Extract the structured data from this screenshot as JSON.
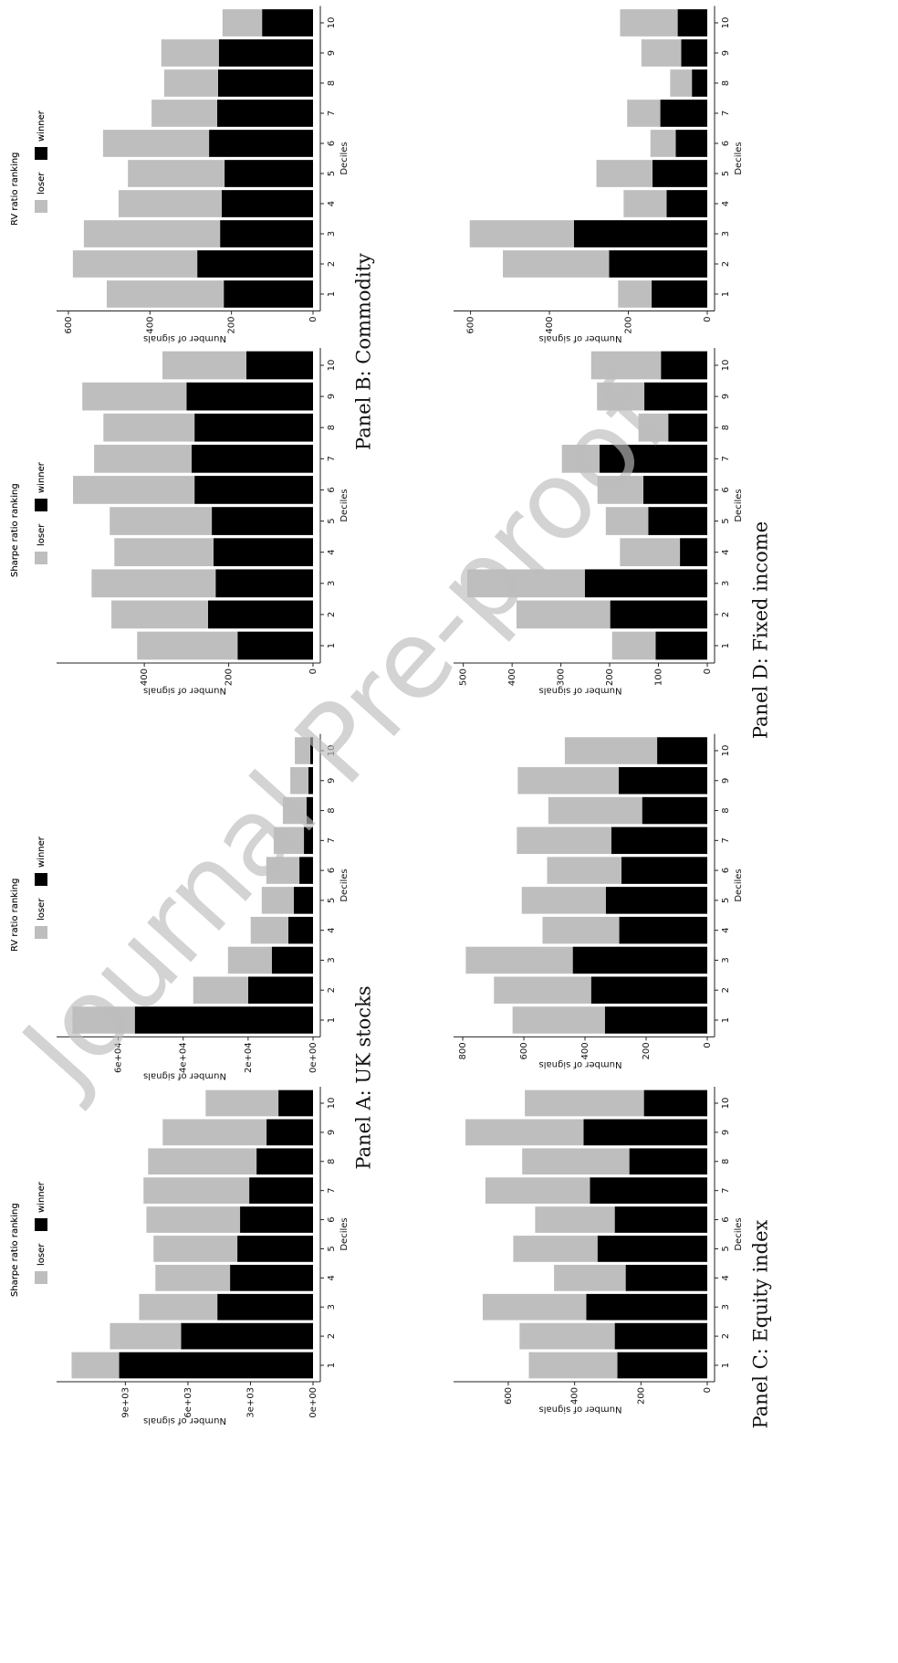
{
  "chart_data": [
    {
      "type": "bar",
      "orientation": "horizontal",
      "stacked": true,
      "legend": "top",
      "title": "Sharpe ratio ranking",
      "x_label": "Deciles",
      "y_label": "Number of signals",
      "categories": [
        "1",
        "2",
        "3",
        "4",
        "5",
        "6",
        "7",
        "8",
        "9",
        "10"
      ],
      "series": [
        {
          "name": "loser",
          "color": "#bebebe",
          "values": [
            2280,
            3410,
            3750,
            3580,
            4020,
            4490,
            5070,
            5200,
            4980,
            3490
          ]
        },
        {
          "name": "winner",
          "color": "#000000",
          "values": [
            9300,
            6330,
            4590,
            3980,
            3630,
            3500,
            3060,
            2710,
            2230,
            1660
          ]
        }
      ],
      "ylim": [
        0,
        12300
      ],
      "yticks": [
        {
          "value": 0,
          "label": "0e+00"
        },
        {
          "value": 3000,
          "label": "3e+03"
        },
        {
          "value": 6000,
          "label": "6e+03"
        },
        {
          "value": 9000,
          "label": "9e+03"
        }
      ]
    },
    {
      "type": "bar",
      "orientation": "horizontal",
      "stacked": true,
      "legend": "top",
      "title": "RV ratio ranking",
      "x_label": "Deciles",
      "y_label": "Number of signals",
      "categories": [
        "1",
        "2",
        "3",
        "4",
        "5",
        "6",
        "7",
        "8",
        "9",
        "10"
      ],
      "series": [
        {
          "name": "loser",
          "color": "#bebebe",
          "values": [
            19200,
            16900,
            13500,
            11600,
            9900,
            10200,
            9300,
            7300,
            5600,
            4750
          ]
        },
        {
          "name": "winner",
          "color": "#000000",
          "values": [
            54900,
            20000,
            12700,
            7600,
            5900,
            4200,
            2800,
            2000,
            1400,
            850
          ]
        }
      ],
      "ylim": [
        0,
        79000
      ],
      "yticks": [
        {
          "value": 0,
          "label": "0e+00"
        },
        {
          "value": 20000,
          "label": "2e+04"
        },
        {
          "value": 40000,
          "label": "4e+04"
        },
        {
          "value": 60000,
          "label": "6e+04"
        }
      ]
    },
    {
      "type": "bar",
      "orientation": "horizontal",
      "stacked": true,
      "legend": "top",
      "title": "Sharpe ratio ranking",
      "x_label": "Deciles",
      "y_label": "Number of signals",
      "categories": [
        "1",
        "2",
        "3",
        "4",
        "5",
        "6",
        "7",
        "8",
        "9",
        "10"
      ],
      "series": [
        {
          "name": "loser",
          "color": "#bebebe",
          "values": [
            238,
            229,
            294,
            235,
            242,
            288,
            231,
            216,
            247,
            199
          ]
        },
        {
          "name": "winner",
          "color": "#000000",
          "values": [
            179,
            249,
            231,
            236,
            240,
            281,
            288,
            281,
            300,
            158
          ]
        }
      ],
      "ylim": [
        0,
        608
      ],
      "yticks": [
        0,
        200,
        400
      ]
    },
    {
      "type": "bar",
      "orientation": "horizontal",
      "stacked": true,
      "legend": "top",
      "title": "RV ratio ranking",
      "x_label": "Deciles",
      "y_label": "Number of signals",
      "categories": [
        "1",
        "2",
        "3",
        "4",
        "5",
        "6",
        "7",
        "8",
        "9",
        "10"
      ],
      "series": [
        {
          "name": "loser",
          "color": "#bebebe",
          "values": [
            287,
            305,
            334,
            253,
            237,
            260,
            161,
            132,
            141,
            97
          ]
        },
        {
          "name": "winner",
          "color": "#000000",
          "values": [
            219,
            284,
            228,
            224,
            217,
            255,
            235,
            233,
            231,
            125
          ]
        }
      ],
      "ylim": [
        0,
        629
      ],
      "yticks": [
        0,
        200,
        400,
        600
      ]
    },
    {
      "type": "bar",
      "orientation": "horizontal",
      "stacked": true,
      "legend": "top",
      "title": "Sharpe ratio ranking",
      "x_label": "Deciles",
      "y_label": "Number of signals",
      "categories": [
        "1",
        "2",
        "3",
        "4",
        "5",
        "6",
        "7",
        "8",
        "9",
        "10"
      ],
      "series": [
        {
          "name": "loser",
          "color": "#bebebe",
          "values": [
            267,
            287,
            312,
            216,
            254,
            240,
            315,
            323,
            356,
            359
          ]
        },
        {
          "name": "winner",
          "color": "#000000",
          "values": [
            271,
            279,
            365,
            246,
            331,
            279,
            354,
            235,
            373,
            191
          ]
        }
      ],
      "ylim": [
        0,
        765
      ],
      "yticks": [
        0,
        200,
        400,
        600
      ]
    },
    {
      "type": "bar",
      "orientation": "horizontal",
      "stacked": true,
      "legend": "top",
      "title": "RV ratio ranking",
      "x_label": "Deciles",
      "y_label": "Number of signals",
      "categories": [
        "1",
        "2",
        "3",
        "4",
        "5",
        "6",
        "7",
        "8",
        "9",
        "10"
      ],
      "series": [
        {
          "name": "loser",
          "color": "#bebebe",
          "values": [
            302,
            318,
            350,
            251,
            275,
            243,
            309,
            307,
            330,
            302
          ]
        },
        {
          "name": "winner",
          "color": "#000000",
          "values": [
            335,
            380,
            440,
            288,
            332,
            281,
            314,
            213,
            290,
            164
          ]
        }
      ],
      "ylim": [
        0,
        830
      ],
      "yticks": [
        0,
        200,
        400,
        600,
        800
      ]
    },
    {
      "type": "bar",
      "orientation": "horizontal",
      "stacked": true,
      "legend": "top",
      "title": "Sharpe ratio ranking",
      "x_label": "Deciles",
      "y_label": "Number of signals",
      "categories": [
        "1",
        "2",
        "3",
        "4",
        "5",
        "6",
        "7",
        "8",
        "9",
        "10"
      ],
      "series": [
        {
          "name": "loser",
          "color": "#bebebe",
          "values": [
            89,
            192,
            241,
            123,
            87,
            94,
            77,
            61,
            97,
            143
          ]
        },
        {
          "name": "winner",
          "color": "#000000",
          "values": [
            106,
            199,
            251,
            56,
            121,
            131,
            221,
            80,
            129,
            95
          ]
        }
      ],
      "ylim": [
        0,
        520
      ],
      "yticks": [
        0,
        100,
        200,
        300,
        400,
        500
      ]
    },
    {
      "type": "bar",
      "orientation": "horizontal",
      "stacked": true,
      "legend": "top",
      "title": "RV ratio ranking",
      "x_label": "Deciles",
      "y_label": "Number of signals",
      "categories": [
        "1",
        "2",
        "3",
        "4",
        "5",
        "6",
        "7",
        "8",
        "9",
        "10"
      ],
      "series": [
        {
          "name": "loser",
          "color": "#bebebe",
          "values": [
            85,
            269,
            264,
            109,
            142,
            64,
            84,
            55,
            101,
            146
          ]
        },
        {
          "name": "winner",
          "color": "#000000",
          "values": [
            141,
            249,
            338,
            103,
            139,
            80,
            119,
            39,
            66,
            75
          ]
        }
      ],
      "ylim": [
        0,
        643
      ],
      "yticks": [
        0,
        200,
        400,
        600
      ]
    }
  ],
  "panel_labels": [
    "Panel A: UK stocks",
    "Panel B: Commodity",
    "Panel C: Equity index",
    "Panel D: Fixed income"
  ],
  "watermark": "Journal Pre-proof"
}
